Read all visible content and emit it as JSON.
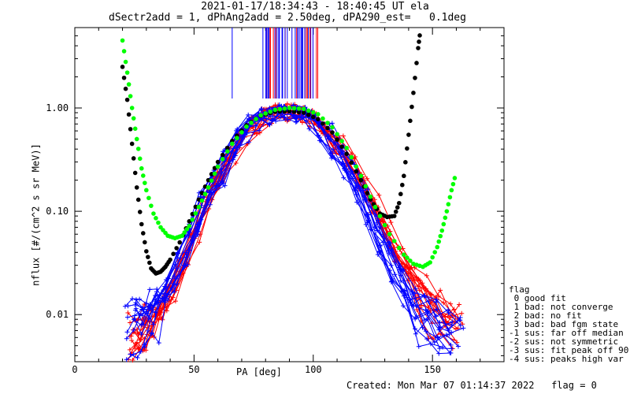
{
  "header": {
    "title_line1": "2021-01-17/18:34:43 - 18:40:45 UT ela",
    "title_line2": "dSectr2add = 1, dPhAng2add = 2.50deg, dPA290_est=   0.1deg"
  },
  "footer": {
    "created": "Created: Mon Mar 07 01:14:37 2022   flag = 0"
  },
  "legend": {
    "title": "flag",
    "items": [
      " 0 good fit",
      " 1 bad: not converge",
      " 2 bad: no fit",
      " 3 bad: bad fgm state",
      "-1 sus: far off median",
      "-2 sus: not symmetric",
      "-3 sus: fit peak off 90",
      "-4 sus: peaks high var"
    ]
  },
  "colors": {
    "red_series": "#ff0000",
    "blue_series": "#0000ff",
    "fit_black": "#000000",
    "fit_green": "#00ff00"
  },
  "chart_data": {
    "type": "line",
    "title": "2021-01-17/18:34:43 - 18:40:45 UT ela",
    "subtitle": "dSectr2add = 1, dPhAng2add = 2.50deg, dPA290_est=   0.1deg",
    "xlabel": "PA [deg]",
    "ylabel": "nflux [#/(cm^2 s sr MeV)]",
    "x_scale": "linear",
    "y_scale": "log",
    "xlim": [
      0,
      180
    ],
    "ylim": [
      0.0035,
      6.0
    ],
    "x_ticks": [
      0,
      50,
      100,
      150
    ],
    "x_tick_labels": [
      "0",
      "50",
      "100",
      "150"
    ],
    "y_ticks": [
      0.01,
      0.1,
      1.0
    ],
    "y_tick_labels": [
      "0.01",
      "0.10",
      "1.00"
    ],
    "grid": false,
    "series": [
      {
        "name": "fit_black",
        "x": [
          20,
          22,
          24,
          26,
          28,
          30,
          32,
          34,
          36,
          38,
          40,
          44,
          48,
          52,
          56,
          60,
          66,
          72,
          78,
          84,
          90,
          96,
          102,
          108,
          114,
          120,
          124,
          128,
          131,
          134,
          136,
          138,
          140,
          142,
          144,
          145
        ],
        "values": [
          2.5,
          1.2,
          0.45,
          0.17,
          0.075,
          0.041,
          0.028,
          0.025,
          0.026,
          0.029,
          0.034,
          0.05,
          0.08,
          0.13,
          0.2,
          0.3,
          0.48,
          0.68,
          0.84,
          0.92,
          0.93,
          0.9,
          0.78,
          0.58,
          0.36,
          0.2,
          0.13,
          0.095,
          0.088,
          0.09,
          0.12,
          0.22,
          0.55,
          1.4,
          3.8,
          5.8
        ]
      },
      {
        "name": "fit_green",
        "x": [
          20,
          22,
          24,
          26,
          28,
          30,
          33,
          36,
          39,
          42,
          45,
          48,
          52,
          56,
          60,
          66,
          72,
          78,
          84,
          90,
          96,
          102,
          108,
          114,
          120,
          126,
          132,
          138,
          142,
          146,
          149,
          152,
          154,
          156,
          158,
          160
        ],
        "values": [
          4.5,
          2.2,
          1.0,
          0.5,
          0.26,
          0.16,
          0.095,
          0.07,
          0.058,
          0.055,
          0.058,
          0.072,
          0.11,
          0.17,
          0.27,
          0.45,
          0.66,
          0.85,
          0.96,
          1.0,
          0.98,
          0.87,
          0.65,
          0.41,
          0.22,
          0.11,
          0.06,
          0.038,
          0.031,
          0.029,
          0.032,
          0.045,
          0.065,
          0.1,
          0.16,
          0.24
        ]
      },
      {
        "name": "data_red",
        "x": [
          24,
          27,
          30,
          33,
          36,
          40,
          45,
          50,
          55,
          60,
          65,
          70,
          75,
          80,
          85,
          90,
          95,
          100,
          105,
          110,
          115,
          120,
          125,
          130,
          135,
          140,
          145,
          150,
          155,
          160
        ],
        "values": [
          0.006,
          0.007,
          0.008,
          0.009,
          0.011,
          0.016,
          0.03,
          0.06,
          0.12,
          0.2,
          0.32,
          0.5,
          0.7,
          0.82,
          0.9,
          0.92,
          0.9,
          0.82,
          0.65,
          0.45,
          0.3,
          0.2,
          0.12,
          0.07,
          0.04,
          0.025,
          0.016,
          0.012,
          0.01,
          0.009
        ]
      },
      {
        "name": "data_blue",
        "x": [
          24,
          27,
          30,
          33,
          36,
          40,
          45,
          50,
          55,
          60,
          65,
          70,
          75,
          80,
          85,
          90,
          95,
          100,
          105,
          110,
          115,
          120,
          125,
          130,
          135,
          140,
          145,
          150,
          155,
          160
        ],
        "values": [
          0.008,
          0.009,
          0.01,
          0.012,
          0.014,
          0.02,
          0.035,
          0.07,
          0.13,
          0.22,
          0.35,
          0.55,
          0.75,
          0.85,
          0.9,
          0.9,
          0.88,
          0.78,
          0.6,
          0.4,
          0.25,
          0.15,
          0.08,
          0.045,
          0.025,
          0.015,
          0.01,
          0.008,
          0.007,
          0.006
        ]
      }
    ]
  }
}
